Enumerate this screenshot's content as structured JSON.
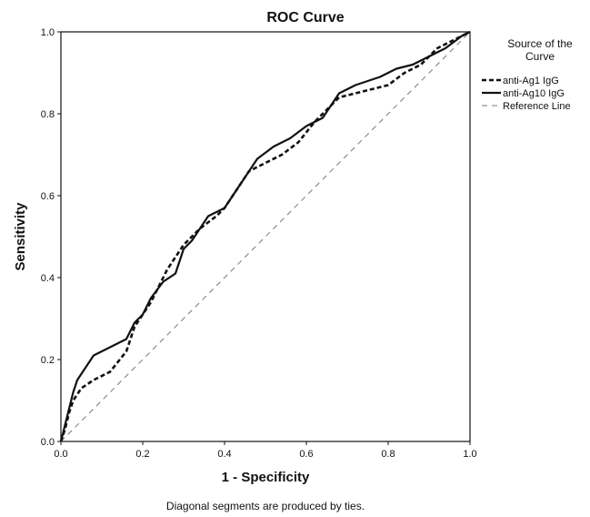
{
  "chart_data": {
    "type": "line",
    "title": "ROC Curve",
    "xlabel": "1 - Specificity",
    "ylabel": "Sensitivity",
    "xlim": [
      0.0,
      1.0
    ],
    "ylim": [
      0.0,
      1.0
    ],
    "x_ticks": [
      "0.0",
      "0.2",
      "0.4",
      "0.6",
      "0.8",
      "1.0"
    ],
    "y_ticks": [
      "0.0",
      "0.2",
      "0.4",
      "0.6",
      "0.8",
      "1.0"
    ],
    "legend": {
      "title_line1": "Source of the",
      "title_line2": "Curve",
      "position": "right"
    },
    "footnote": "Diagonal segments are produced by ties.",
    "series": [
      {
        "name": "anti-Ag1 IgG",
        "style": "dashed-bold",
        "color": "#111111",
        "points": [
          [
            0,
            0
          ],
          [
            0.01,
            0.03
          ],
          [
            0.02,
            0.07
          ],
          [
            0.03,
            0.1
          ],
          [
            0.05,
            0.13
          ],
          [
            0.08,
            0.15
          ],
          [
            0.12,
            0.17
          ],
          [
            0.16,
            0.22
          ],
          [
            0.18,
            0.28
          ],
          [
            0.22,
            0.34
          ],
          [
            0.26,
            0.42
          ],
          [
            0.3,
            0.48
          ],
          [
            0.34,
            0.52
          ],
          [
            0.38,
            0.55
          ],
          [
            0.4,
            0.57
          ],
          [
            0.44,
            0.63
          ],
          [
            0.46,
            0.66
          ],
          [
            0.5,
            0.68
          ],
          [
            0.54,
            0.7
          ],
          [
            0.58,
            0.73
          ],
          [
            0.62,
            0.78
          ],
          [
            0.66,
            0.82
          ],
          [
            0.68,
            0.84
          ],
          [
            0.72,
            0.85
          ],
          [
            0.76,
            0.86
          ],
          [
            0.8,
            0.87
          ],
          [
            0.84,
            0.9
          ],
          [
            0.88,
            0.92
          ],
          [
            0.92,
            0.96
          ],
          [
            0.96,
            0.98
          ],
          [
            1.0,
            1.0
          ]
        ]
      },
      {
        "name": "anti-Ag10 IgG",
        "style": "solid",
        "color": "#111111",
        "points": [
          [
            0,
            0
          ],
          [
            0.005,
            0.02
          ],
          [
            0.01,
            0.04
          ],
          [
            0.02,
            0.08
          ],
          [
            0.03,
            0.12
          ],
          [
            0.04,
            0.15
          ],
          [
            0.06,
            0.18
          ],
          [
            0.08,
            0.21
          ],
          [
            0.1,
            0.22
          ],
          [
            0.14,
            0.24
          ],
          [
            0.16,
            0.25
          ],
          [
            0.18,
            0.29
          ],
          [
            0.2,
            0.31
          ],
          [
            0.22,
            0.35
          ],
          [
            0.25,
            0.39
          ],
          [
            0.28,
            0.41
          ],
          [
            0.3,
            0.47
          ],
          [
            0.32,
            0.49
          ],
          [
            0.34,
            0.52
          ],
          [
            0.36,
            0.55
          ],
          [
            0.4,
            0.57
          ],
          [
            0.42,
            0.6
          ],
          [
            0.46,
            0.66
          ],
          [
            0.48,
            0.69
          ],
          [
            0.52,
            0.72
          ],
          [
            0.56,
            0.74
          ],
          [
            0.6,
            0.77
          ],
          [
            0.64,
            0.79
          ],
          [
            0.66,
            0.82
          ],
          [
            0.68,
            0.85
          ],
          [
            0.72,
            0.87
          ],
          [
            0.78,
            0.89
          ],
          [
            0.82,
            0.91
          ],
          [
            0.86,
            0.92
          ],
          [
            0.9,
            0.94
          ],
          [
            0.94,
            0.96
          ],
          [
            0.98,
            0.99
          ],
          [
            1.0,
            1.0
          ]
        ]
      },
      {
        "name": "Reference Line",
        "style": "dashed-thin",
        "color": "#777777",
        "points": [
          [
            0,
            0
          ],
          [
            1,
            1
          ]
        ]
      }
    ]
  }
}
